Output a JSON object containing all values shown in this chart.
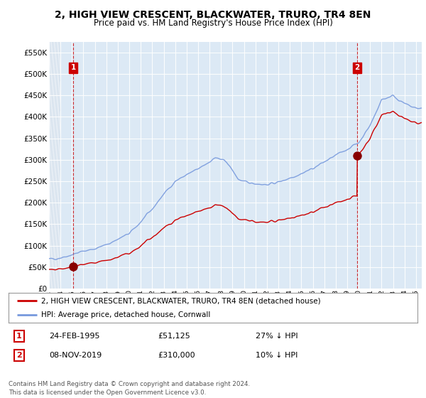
{
  "title": "2, HIGH VIEW CRESCENT, BLACKWATER, TRURO, TR4 8EN",
  "subtitle": "Price paid vs. HM Land Registry's House Price Index (HPI)",
  "ylabel_ticks": [
    "£0",
    "£50K",
    "£100K",
    "£150K",
    "£200K",
    "£250K",
    "£300K",
    "£350K",
    "£400K",
    "£450K",
    "£500K",
    "£550K"
  ],
  "ytick_values": [
    0,
    50000,
    100000,
    150000,
    200000,
    250000,
    300000,
    350000,
    400000,
    450000,
    500000,
    550000
  ],
  "ylim": [
    0,
    575000
  ],
  "xlim_start": 1993.0,
  "xlim_end": 2025.5,
  "sale1_x": 1995.12,
  "sale1_y": 51125,
  "sale2_x": 2019.85,
  "sale2_y": 310000,
  "legend_line1": "2, HIGH VIEW CRESCENT, BLACKWATER, TRURO, TR4 8EN (detached house)",
  "legend_line2": "HPI: Average price, detached house, Cornwall",
  "table_row1": [
    "1",
    "24-FEB-1995",
    "£51,125",
    "27% ↓ HPI"
  ],
  "table_row2": [
    "2",
    "08-NOV-2019",
    "£310,000",
    "10% ↓ HPI"
  ],
  "copyright_text": "Contains HM Land Registry data © Crown copyright and database right 2024.\nThis data is licensed under the Open Government Licence v3.0.",
  "hpi_color": "#7799dd",
  "price_color": "#cc0000",
  "label_box_color": "#cc0000",
  "bg_color": "#ffffff",
  "plot_bg_color": "#dce9f5",
  "grid_color": "#ffffff",
  "hatch_bg_color": "#c8d8e8",
  "xtick_years": [
    1993,
    1994,
    1995,
    1996,
    1997,
    1998,
    1999,
    2000,
    2001,
    2002,
    2003,
    2004,
    2005,
    2006,
    2007,
    2008,
    2009,
    2010,
    2011,
    2012,
    2013,
    2014,
    2015,
    2016,
    2017,
    2018,
    2019,
    2020,
    2021,
    2022,
    2023,
    2024,
    2025
  ],
  "hpi_keypoints_x": [
    1993.0,
    1994.0,
    1995.0,
    1996.0,
    1997.0,
    1998.0,
    1999.0,
    2000.0,
    2001.0,
    2002.0,
    2003.0,
    2004.0,
    2005.0,
    2006.0,
    2007.5,
    2008.5,
    2009.5,
    2010.0,
    2011.0,
    2012.0,
    2013.0,
    2014.0,
    2015.0,
    2016.0,
    2017.0,
    2018.0,
    2019.0,
    2019.85,
    2020.0,
    2021.0,
    2022.0,
    2023.0,
    2024.0,
    2025.0
  ],
  "hpi_keypoints_y": [
    68000,
    72000,
    79000,
    87000,
    93000,
    102000,
    115000,
    128000,
    155000,
    185000,
    220000,
    250000,
    265000,
    278000,
    305000,
    295000,
    255000,
    248000,
    245000,
    242000,
    248000,
    258000,
    268000,
    280000,
    295000,
    310000,
    325000,
    338000,
    340000,
    380000,
    440000,
    450000,
    430000,
    420000
  ]
}
